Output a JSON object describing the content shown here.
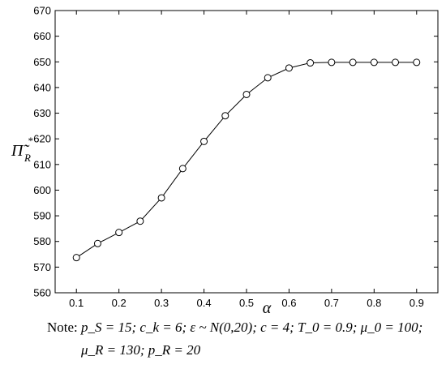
{
  "chart_data": {
    "type": "line",
    "title": "",
    "xlabel": "α",
    "ylabel": "Π̃",
    "ylabel_sub": "R",
    "ylabel_sup": "*",
    "xlim": [
      0.05,
      0.95
    ],
    "ylim": [
      560,
      670
    ],
    "xticks": [
      "0.1",
      "0.2",
      "0.3",
      "0.4",
      "0.5",
      "0.6",
      "0.7",
      "0.8",
      "0.9"
    ],
    "yticks": [
      "560",
      "570",
      "580",
      "590",
      "600",
      "610",
      "620",
      "630",
      "640",
      "650",
      "660",
      "670"
    ],
    "grid": false,
    "marker": "open-circle",
    "line_color": "#000000",
    "series": [
      {
        "x": [
          0.1,
          0.15,
          0.2,
          0.25,
          0.3,
          0.35,
          0.4,
          0.45,
          0.5,
          0.55,
          0.6,
          0.65,
          0.7,
          0.75,
          0.8,
          0.85,
          0.9
        ],
        "values": [
          573.7,
          579.2,
          583.5,
          587.9,
          597.0,
          608.4,
          619.0,
          629.0,
          637.3,
          643.8,
          647.6,
          649.6,
          649.8,
          649.8,
          649.8,
          649.8,
          649.8
        ]
      }
    ]
  },
  "note": {
    "label": "Note:",
    "line1": "p_S = 15; c_k = 6; ε ~ N(0,20); c = 4; T_0 = 0.9; μ_0 = 100;",
    "line2": "μ_R = 130; p_R = 20"
  }
}
